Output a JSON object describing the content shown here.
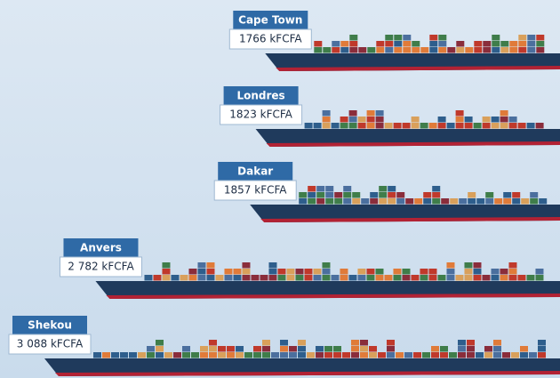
{
  "chart_data": {
    "type": "bar",
    "categories": [
      "Cape Town",
      "Londres",
      "Dakar",
      "Anvers",
      "Shekou"
    ],
    "values": [
      1766,
      1823,
      1857,
      2782,
      3088
    ],
    "value_labels": [
      "1766 kFCFA",
      "1823 kFCFA",
      "1857 kFCFA",
      "2 782 kFCFA",
      "3 088 kFCFA"
    ],
    "color": "#1f3a5c"
  }
}
